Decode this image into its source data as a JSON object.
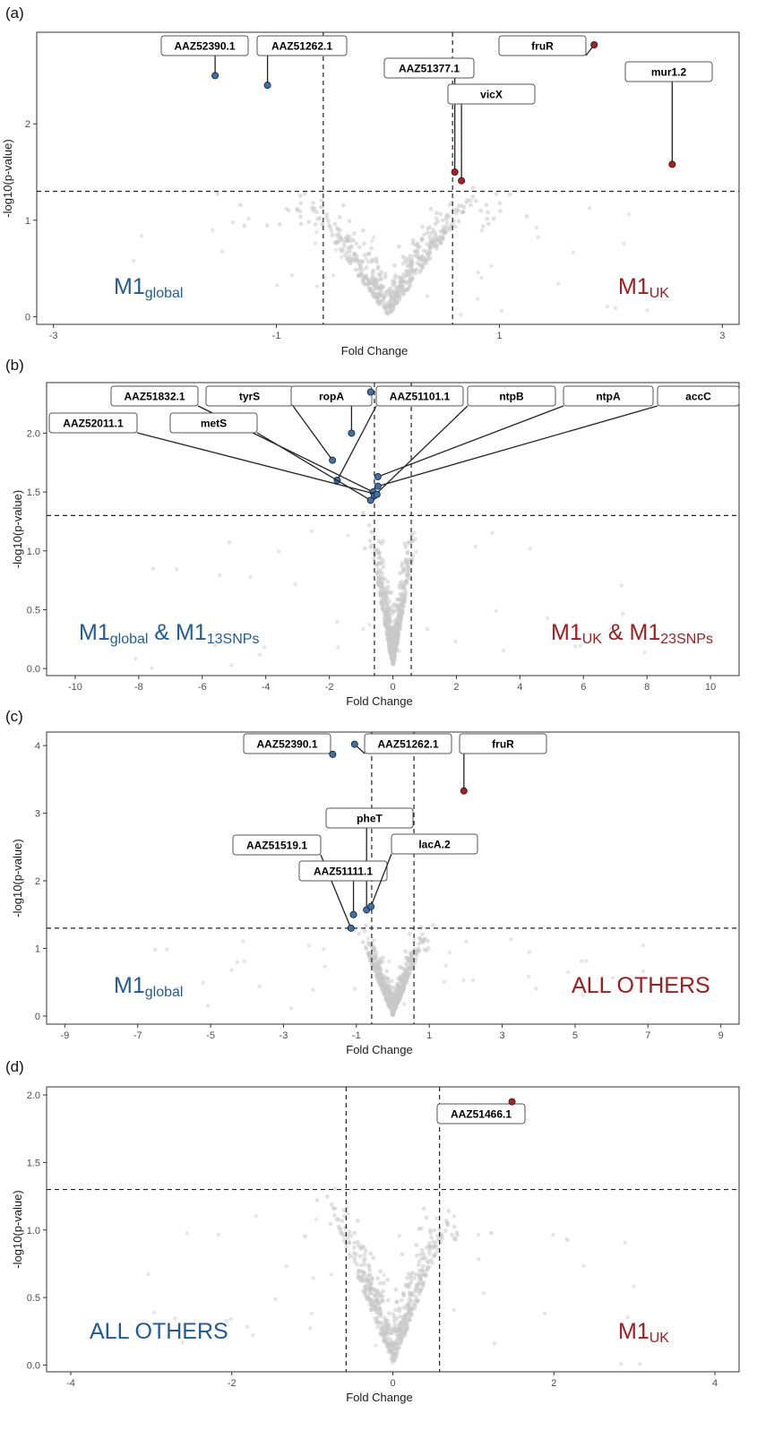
{
  "colors": {
    "blue": "#1f5b99",
    "red": "#a11c1c",
    "grey": "#c8c8c8",
    "point_blue": "#3a72b0",
    "point_red": "#b01e1e"
  },
  "chart_data": [
    {
      "type": "scatter",
      "panel_label": "(a)",
      "xlabel": "Fold Change",
      "ylabel": "-log10(p-value)",
      "xlim": [
        -3.15,
        3.15
      ],
      "ylim": [
        -0.08,
        2.95
      ],
      "x_ticks": [
        -3,
        -1,
        1,
        3
      ],
      "y_ticks": [
        0,
        1,
        2
      ],
      "y_tick_labels": [
        "0",
        "1",
        "2"
      ],
      "vlines": [
        -0.58,
        0.58
      ],
      "hline": 1.3,
      "left_group": {
        "main": "M1",
        "sub": "global",
        "color": "blue"
      },
      "right_group": {
        "main": "M1",
        "sub": "UK",
        "color": "red"
      },
      "background_points": "grey",
      "labeled_points": [
        {
          "label": "AAZ52390.1",
          "x": -1.55,
          "y": 2.5,
          "side": "left"
        },
        {
          "label": "AAZ51262.1",
          "x": -1.08,
          "y": 2.4,
          "side": "left"
        },
        {
          "label": "AAZ51377.1",
          "x": 0.6,
          "y": 1.5,
          "side": "right"
        },
        {
          "label": "vicX",
          "x": 0.66,
          "y": 1.41,
          "side": "right"
        },
        {
          "label": "fruR",
          "x": 1.85,
          "y": 2.82,
          "side": "right"
        },
        {
          "label": "mur1.2",
          "x": 2.55,
          "y": 1.58,
          "side": "right"
        }
      ]
    },
    {
      "type": "scatter",
      "panel_label": "(b)",
      "xlabel": "Fold Change",
      "ylabel": "-log10(p-value)",
      "xlim": [
        -10.9,
        10.9
      ],
      "ylim": [
        -0.06,
        2.43
      ],
      "x_ticks": [
        -10,
        -8,
        -6,
        -4,
        -2,
        0,
        2,
        4,
        6,
        8,
        10
      ],
      "y_ticks": [
        0,
        0.5,
        1,
        1.5,
        2
      ],
      "y_tick_labels": [
        "0.0",
        "0.5",
        "1.0",
        "1.5",
        "2.0"
      ],
      "vlines": [
        -0.58,
        0.58
      ],
      "hline": 1.3,
      "left_group": {
        "main": "M1",
        "sub": "global",
        "connector": " & ",
        "main2": "M1",
        "sub2": "13SNPs",
        "color": "blue"
      },
      "right_group": {
        "main": "M1",
        "sub": "UK",
        "connector": " & ",
        "main2": "M1",
        "sub2": "23SNPs",
        "color": "red"
      },
      "background_points": "grey",
      "labeled_points": [
        {
          "label": "AAZ51832.1",
          "x": -0.62,
          "y": 1.5,
          "side": "left"
        },
        {
          "label": "tyrS",
          "x": -1.9,
          "y": 1.77,
          "side": "left"
        },
        {
          "label": "ropA",
          "x": -1.3,
          "y": 2.0,
          "side": "left"
        },
        {
          "label": "AAZ51101.1",
          "x": -1.75,
          "y": 1.6,
          "side": "left"
        },
        {
          "label": "ntpB",
          "x": -0.58,
          "y": 1.47,
          "side": "left"
        },
        {
          "label": "ntpA",
          "x": -0.47,
          "y": 1.63,
          "side": "left"
        },
        {
          "label": "accC",
          "x": -0.47,
          "y": 1.55,
          "side": "left"
        },
        {
          "label": "AAZ52011.1",
          "x": -0.5,
          "y": 1.48,
          "side": "left"
        },
        {
          "label": "metS",
          "x": -0.7,
          "y": 1.43,
          "side": "left"
        },
        {
          "label": "",
          "x": -0.7,
          "y": 2.35,
          "side": "left"
        }
      ]
    },
    {
      "type": "scatter",
      "panel_label": "(c)",
      "xlabel": "Fold Change",
      "ylabel": "-log10(p-value)",
      "xlim": [
        -9.5,
        9.5
      ],
      "ylim": [
        -0.12,
        4.2
      ],
      "x_ticks": [
        -9,
        -7,
        -5,
        -3,
        -1,
        1,
        3,
        5,
        7,
        9
      ],
      "y_ticks": [
        0,
        1,
        2,
        3,
        4
      ],
      "y_tick_labels": [
        "0",
        "1",
        "2",
        "3",
        "4"
      ],
      "vlines": [
        -0.58,
        0.58
      ],
      "hline": 1.3,
      "left_group": {
        "main": "M1",
        "sub": "global",
        "color": "blue"
      },
      "right_group": {
        "main": "ALL OTHERS",
        "sub": "",
        "color": "red"
      },
      "background_points": "grey",
      "labeled_points": [
        {
          "label": "AAZ52390.1",
          "x": -1.65,
          "y": 3.87,
          "side": "left"
        },
        {
          "label": "AAZ51262.1",
          "x": -1.05,
          "y": 4.02,
          "side": "left"
        },
        {
          "label": "fruR",
          "x": 1.95,
          "y": 3.33,
          "side": "right"
        },
        {
          "label": "pheT",
          "x": -0.72,
          "y": 1.57,
          "side": "left"
        },
        {
          "label": "AAZ51519.1",
          "x": -1.15,
          "y": 1.3,
          "side": "left"
        },
        {
          "label": "AAZ51111.1",
          "x": -1.08,
          "y": 1.5,
          "side": "left"
        },
        {
          "label": "lacA.2",
          "x": -0.6,
          "y": 1.62,
          "side": "left"
        }
      ]
    },
    {
      "type": "scatter",
      "panel_label": "(d)",
      "xlabel": "Fold Change",
      "ylabel": "-log10(p-value)",
      "xlim": [
        -4.3,
        4.3
      ],
      "ylim": [
        -0.05,
        2.06
      ],
      "x_ticks": [
        -4,
        -2,
        0,
        2,
        4
      ],
      "y_ticks": [
        0,
        0.5,
        1,
        1.5,
        2
      ],
      "y_tick_labels": [
        "0.0",
        "0.5",
        "1.0",
        "1.5",
        "2.0"
      ],
      "vlines": [
        -0.58,
        0.58
      ],
      "hline": 1.3,
      "left_group": {
        "main": "ALL OTHERS",
        "sub": "",
        "color": "blue"
      },
      "right_group": {
        "main": "M1",
        "sub": "UK",
        "color": "red"
      },
      "background_points": "grey",
      "labeled_points": [
        {
          "label": "AAZ51466.1",
          "x": 1.48,
          "y": 1.95,
          "side": "right"
        }
      ]
    }
  ]
}
